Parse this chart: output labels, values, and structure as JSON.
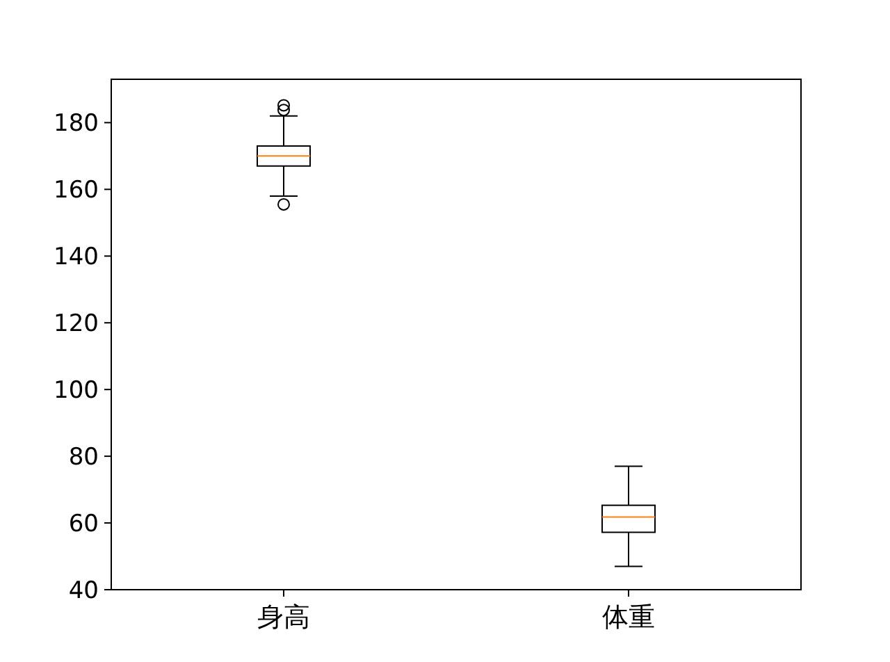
{
  "chart_data": {
    "type": "box",
    "categories": [
      "身高",
      "体重"
    ],
    "boxes": [
      {
        "low": 158,
        "q1": 167,
        "median": 170,
        "q3": 173,
        "high": 182,
        "outliers": [
          155.5,
          183.8,
          185.2
        ]
      },
      {
        "low": 47,
        "q1": 57.2,
        "median": 61.8,
        "q3": 65.3,
        "high": 77
      }
    ],
    "ylim": [
      40,
      193
    ],
    "yticks": [
      40,
      60,
      80,
      100,
      120,
      140,
      160,
      180
    ],
    "grid": false
  }
}
